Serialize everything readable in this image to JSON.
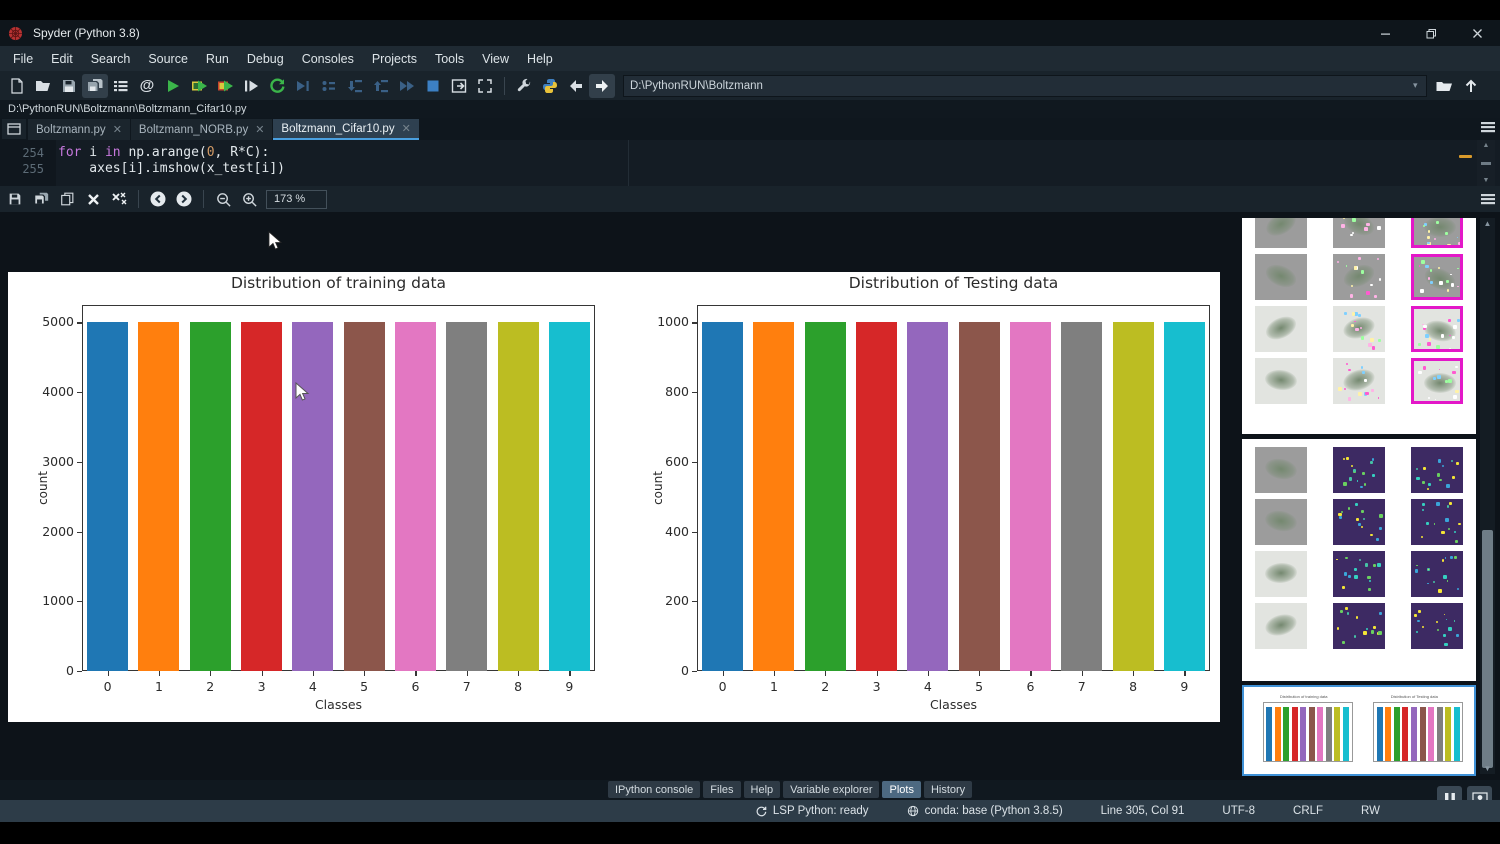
{
  "window": {
    "title": "Spyder (Python 3.8)"
  },
  "menu": {
    "items": [
      "File",
      "Edit",
      "Search",
      "Source",
      "Run",
      "Debug",
      "Consoles",
      "Projects",
      "Tools",
      "View",
      "Help"
    ]
  },
  "main_toolbar": {
    "path_value": "D:\\PythonRUN\\Boltzmann",
    "icons": [
      "new-file",
      "open-file",
      "save",
      "save-all",
      "file-switcher",
      "find-symbols",
      "run-file",
      "run-cell",
      "run-cell-advance",
      "run-selection",
      "re-run-cell",
      "debug-file",
      "step-over",
      "step-into",
      "step-return",
      "continue-debug",
      "stop-debug",
      "maximize-pane",
      "fullscreen",
      "preferences",
      "python-path-manager",
      "back",
      "forward",
      "browse-working-directory",
      "go-to-parent-directory"
    ]
  },
  "breadcrumb": {
    "path": "D:\\PythonRUN\\Boltzmann\\Boltzmann_Cifar10.py"
  },
  "editor": {
    "tabs": [
      {
        "label": "Boltzmann.py",
        "active": false
      },
      {
        "label": "Boltzmann_NORB.py",
        "active": false
      },
      {
        "label": "Boltzmann_Cifar10.py",
        "active": true
      }
    ],
    "lines": [
      {
        "number": "254",
        "tokens": [
          [
            "for",
            "kw"
          ],
          [
            " i ",
            "pl"
          ],
          [
            "in",
            "kw"
          ],
          [
            " np.arange(",
            "pl"
          ],
          [
            "0",
            "num"
          ],
          [
            ", R*C):",
            "pl"
          ]
        ]
      },
      {
        "number": "255",
        "tokens": [
          [
            "    axes[i].imshow(x_test[i])",
            "pl"
          ]
        ]
      }
    ]
  },
  "plots_toolbar": {
    "icons": [
      "save-plot",
      "save-all-plots",
      "copy-plot",
      "close-plot",
      "close-all-plots",
      "previous-plot",
      "next-plot",
      "zoom-out",
      "zoom-in"
    ],
    "zoom_value": "173 %"
  },
  "chart_data": [
    {
      "type": "bar",
      "title": "Distribution of training data",
      "xlabel": "Classes",
      "ylabel": "count",
      "categories": [
        "0",
        "1",
        "2",
        "3",
        "4",
        "5",
        "6",
        "7",
        "8",
        "9"
      ],
      "values": [
        5000,
        5000,
        5000,
        5000,
        5000,
        5000,
        5000,
        5000,
        5000,
        5000
      ],
      "yticks": [
        0,
        1000,
        2000,
        3000,
        4000,
        5000
      ],
      "ylim": [
        0,
        5250
      ],
      "grid": false,
      "bar_colors": [
        "#1f77b4",
        "#ff7f0e",
        "#2ca02c",
        "#d62728",
        "#9467bd",
        "#8c564b",
        "#e377c2",
        "#7f7f7f",
        "#bcbd22",
        "#17becf"
      ]
    },
    {
      "type": "bar",
      "title": "Distribution of Testing data",
      "xlabel": "Classes",
      "ylabel": "count",
      "categories": [
        "0",
        "1",
        "2",
        "3",
        "4",
        "5",
        "6",
        "7",
        "8",
        "9"
      ],
      "values": [
        1000,
        1000,
        1000,
        1000,
        1000,
        1000,
        1000,
        1000,
        1000,
        1000
      ],
      "yticks": [
        0,
        200,
        400,
        600,
        800,
        1000
      ],
      "ylim": [
        0,
        1050
      ],
      "grid": false,
      "bar_colors": [
        "#1f77b4",
        "#ff7f0e",
        "#2ca02c",
        "#d62728",
        "#9467bd",
        "#8c564b",
        "#e377c2",
        "#7f7f7f",
        "#bcbd22",
        "#17becf"
      ]
    }
  ],
  "plots_sidebar": {
    "thumbnails": [
      {
        "name": "image-grid-magenta-highlights",
        "rows": 4,
        "cols": 3,
        "selected": false
      },
      {
        "name": "image-grid-viridis",
        "rows": 4,
        "cols": 3,
        "selected": false
      },
      {
        "name": "class-distribution-bars",
        "selected": true
      }
    ]
  },
  "bottom_tabs": {
    "items": [
      "IPython console",
      "Files",
      "Help",
      "Variable explorer",
      "Plots",
      "History"
    ],
    "active": "Plots"
  },
  "statusbar": {
    "lsp": "LSP Python: ready",
    "conda": "conda: base (Python 3.8.5)",
    "cursor_position": "Line 305, Col 91",
    "encoding": "UTF-8",
    "eol": "CRLF",
    "permissions": "RW"
  }
}
